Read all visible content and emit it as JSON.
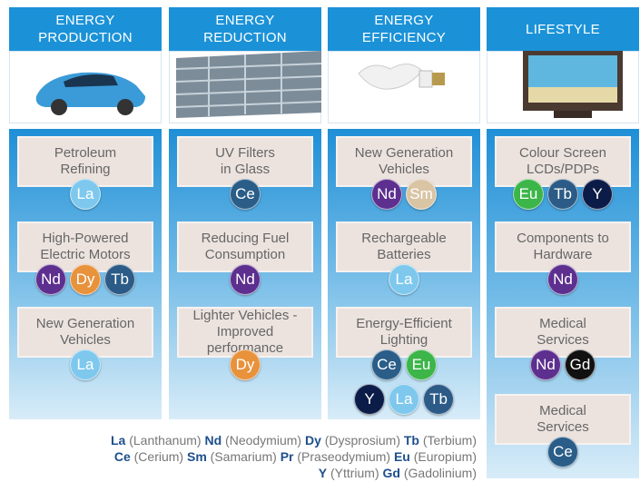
{
  "columns": [
    {
      "title": [
        "ENERGY",
        "PRODUCTION"
      ],
      "items": [
        {
          "label": [
            "Petroleum",
            "Refining"
          ],
          "element_rows": [
            [
              "La"
            ]
          ]
        },
        {
          "label": [
            "High-Powered",
            "Electric Motors"
          ],
          "element_rows": [
            [
              "Nd",
              "Dy",
              "Tb"
            ]
          ]
        },
        {
          "label": [
            "New Generation",
            "Vehicles"
          ],
          "element_rows": [
            [
              "La"
            ]
          ]
        }
      ]
    },
    {
      "title": [
        "ENERGY",
        "REDUCTION"
      ],
      "items": [
        {
          "label": [
            "UV Filters",
            "in Glass"
          ],
          "element_rows": [
            [
              "Ce"
            ]
          ]
        },
        {
          "label": [
            "Reducing Fuel",
            "Consumption"
          ],
          "element_rows": [
            [
              "Nd"
            ]
          ]
        },
        {
          "label": [
            "Lighter Vehicles -",
            "Improved performance"
          ],
          "element_rows": [
            [
              "Dy"
            ]
          ]
        }
      ]
    },
    {
      "title": [
        "ENERGY",
        "EFFICIENCY"
      ],
      "items": [
        {
          "label": [
            "New Generation",
            "Vehicles"
          ],
          "element_rows": [
            [
              "Nd",
              "Sm"
            ]
          ]
        },
        {
          "label": [
            "Rechargeable",
            "Batteries"
          ],
          "element_rows": [
            [
              "La"
            ]
          ]
        },
        {
          "label": [
            "Energy-Efficient",
            "Lighting"
          ],
          "element_rows": [
            [
              "Ce",
              "Eu"
            ],
            [
              "Y",
              "La",
              "Tb"
            ]
          ]
        }
      ]
    },
    {
      "title": [
        "LIFESTYLE"
      ],
      "items": [
        {
          "label": [
            "Colour Screen",
            "LCDs/PDPs"
          ],
          "element_rows": [
            [
              "Eu",
              "Tb",
              "Y"
            ]
          ]
        },
        {
          "label": [
            "Components to",
            "Hardware"
          ],
          "element_rows": [
            [
              "Nd"
            ]
          ]
        },
        {
          "label": [
            "Medical",
            "Services"
          ],
          "element_rows": [
            [
              "Nd",
              "Gd"
            ]
          ]
        },
        {
          "label": [
            "Medical",
            "Services"
          ],
          "element_rows": [
            [
              "Ce"
            ]
          ]
        }
      ]
    }
  ],
  "legend": [
    [
      [
        "La",
        "(Lanthanum)"
      ],
      [
        "Nd",
        "(Neodymium)"
      ],
      [
        "Dy",
        "(Dysprosium)"
      ],
      [
        "Tb",
        "(Terbium)"
      ]
    ],
    [
      [
        "Ce",
        "(Cerium)"
      ],
      [
        "Sm",
        "(Samarium)"
      ],
      [
        "Pr",
        "(Praseodymium)"
      ],
      [
        "Eu",
        "(Europium)"
      ]
    ],
    [
      [
        "Y",
        "(Yttrium)"
      ],
      [
        "Gd",
        "(Gadolinium)"
      ]
    ]
  ]
}
